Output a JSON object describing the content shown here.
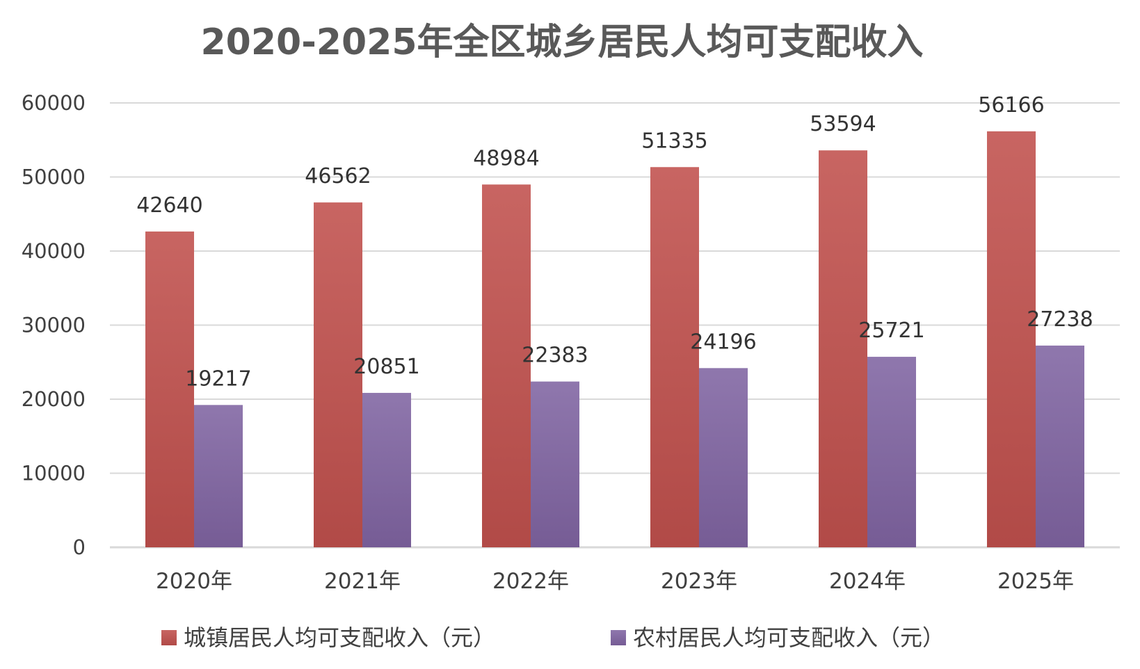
{
  "chart_data": {
    "type": "bar",
    "title": "2020-2025年全区城乡居民人均可支配收入",
    "xlabel": "",
    "ylabel": "",
    "categories": [
      "2020年",
      "2021年",
      "2022年",
      "2023年",
      "2024年",
      "2025年"
    ],
    "ylim": [
      0,
      60000
    ],
    "yticks": [
      0,
      10000,
      20000,
      30000,
      40000,
      50000,
      60000
    ],
    "grid": true,
    "legend_position": "bottom",
    "series": [
      {
        "name": "城镇居民人均可支配收入（元）",
        "color": "#c0504d",
        "values": [
          42640,
          46562,
          48984,
          51335,
          53594,
          56166
        ]
      },
      {
        "name": "农村居民人均可支配收入（元）",
        "color": "#8064a2",
        "values": [
          19217,
          20851,
          22383,
          24196,
          25721,
          27238
        ]
      }
    ]
  }
}
